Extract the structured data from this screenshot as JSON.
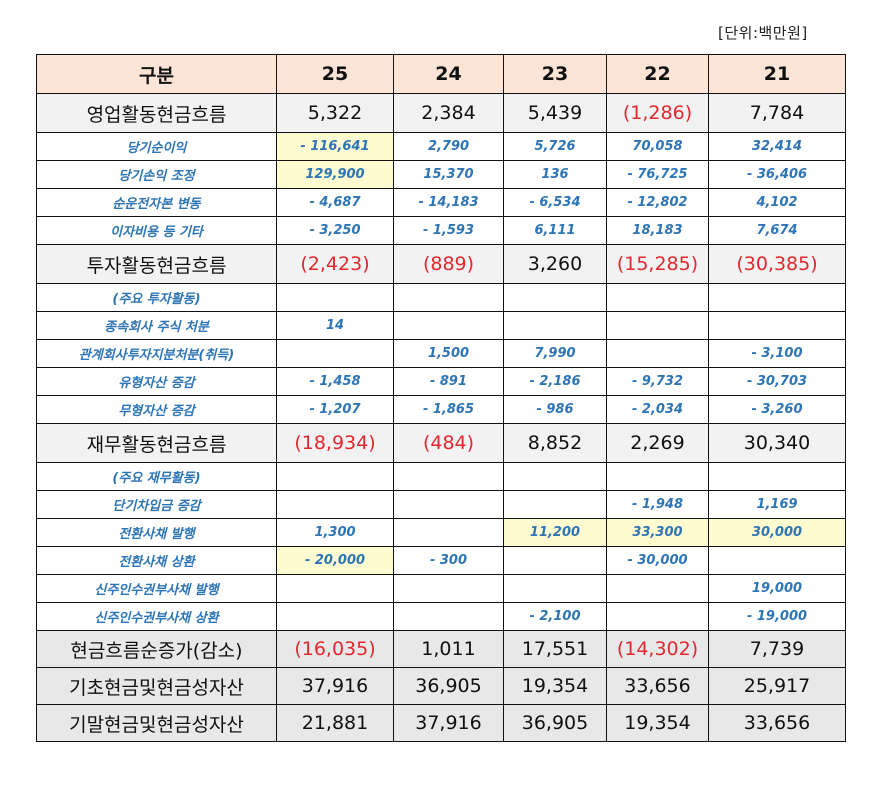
{
  "unit_label": "[단위:백만원]",
  "table": {
    "headers": [
      "구분",
      "25",
      "24",
      "23",
      "22",
      "21"
    ],
    "rows": [
      {
        "type": "main",
        "label": "영업활동현금흐름",
        "values": [
          "5,322",
          "2,384",
          "5,439",
          "(1,286)",
          "7,784"
        ],
        "neg": [
          false,
          false,
          false,
          true,
          false
        ],
        "hl": [
          false,
          false,
          false,
          false,
          false
        ]
      },
      {
        "type": "sub",
        "label": "당기순이익",
        "values": [
          "- 116,641",
          "2,790",
          "5,726",
          "70,058",
          "32,414"
        ],
        "neg": [
          false,
          false,
          false,
          false,
          false
        ],
        "hl": [
          true,
          false,
          false,
          false,
          false
        ]
      },
      {
        "type": "sub",
        "label": "당기손익 조정",
        "values": [
          "129,900",
          "15,370",
          "136",
          "-   76,725",
          "- 36,406"
        ],
        "neg": [
          false,
          false,
          false,
          false,
          false
        ],
        "hl": [
          true,
          false,
          false,
          false,
          false
        ]
      },
      {
        "type": "sub",
        "label": "순운전자본 변동",
        "values": [
          "- 4,687",
          "- 14,183",
          "- 6,534",
          "-   12,802",
          "4,102"
        ],
        "neg": [
          false,
          false,
          false,
          false,
          false
        ],
        "hl": [
          false,
          false,
          false,
          false,
          false
        ]
      },
      {
        "type": "sub",
        "label": "이자비용 등 기타",
        "values": [
          "- 3,250",
          "- 1,593",
          "6,111",
          "18,183",
          "7,674"
        ],
        "neg": [
          false,
          false,
          false,
          false,
          false
        ],
        "hl": [
          false,
          false,
          false,
          false,
          false
        ]
      },
      {
        "type": "main",
        "label": "투자활동현금흐름",
        "values": [
          "(2,423)",
          "(889)",
          "3,260",
          "(15,285)",
          "(30,385)"
        ],
        "neg": [
          true,
          true,
          false,
          true,
          true
        ],
        "hl": [
          false,
          false,
          false,
          false,
          false
        ]
      },
      {
        "type": "sub",
        "label": "(주요 투자활동)",
        "values": [
          "",
          "",
          "",
          "",
          ""
        ],
        "neg": [
          false,
          false,
          false,
          false,
          false
        ],
        "hl": [
          false,
          false,
          false,
          false,
          false
        ]
      },
      {
        "type": "sub",
        "label": "종속회사 주식 처분",
        "values": [
          "14",
          "",
          "",
          "",
          ""
        ],
        "neg": [
          false,
          false,
          false,
          false,
          false
        ],
        "hl": [
          false,
          false,
          false,
          false,
          false
        ]
      },
      {
        "type": "sub",
        "label": "관계회사투자지분처분(취득)",
        "values": [
          "",
          "1,500",
          "7,990",
          "",
          "- 3,100"
        ],
        "neg": [
          false,
          false,
          false,
          false,
          false
        ],
        "hl": [
          false,
          false,
          false,
          false,
          false
        ]
      },
      {
        "type": "sub",
        "label": "유형자산 증감",
        "values": [
          "- 1,458",
          "- 891",
          "- 2,186",
          "- 9,732",
          "- 30,703"
        ],
        "neg": [
          false,
          false,
          false,
          false,
          false
        ],
        "hl": [
          false,
          false,
          false,
          false,
          false
        ]
      },
      {
        "type": "sub",
        "label": "무형자산 증감",
        "values": [
          "- 1,207",
          "- 1,865",
          "- 986",
          "- 2,034",
          "- 3,260"
        ],
        "neg": [
          false,
          false,
          false,
          false,
          false
        ],
        "hl": [
          false,
          false,
          false,
          false,
          false
        ]
      },
      {
        "type": "main",
        "label": "재무활동현금흐름",
        "values": [
          "(18,934)",
          "(484)",
          "8,852",
          "2,269",
          "30,340"
        ],
        "neg": [
          true,
          true,
          false,
          false,
          false
        ],
        "hl": [
          false,
          false,
          false,
          false,
          false
        ]
      },
      {
        "type": "sub",
        "label": "(주요 재무활동)",
        "values": [
          "",
          "",
          "",
          "",
          ""
        ],
        "neg": [
          false,
          false,
          false,
          false,
          false
        ],
        "hl": [
          false,
          false,
          false,
          false,
          false
        ]
      },
      {
        "type": "sub",
        "label": "단기차입금 증감",
        "values": [
          "",
          "",
          "",
          "- 1,948",
          "1,169"
        ],
        "neg": [
          false,
          false,
          false,
          false,
          false
        ],
        "hl": [
          false,
          false,
          false,
          false,
          false
        ]
      },
      {
        "type": "sub",
        "label": "전환사채 발행",
        "values": [
          "1,300",
          "",
          "11,200",
          "33,300",
          "30,000"
        ],
        "neg": [
          false,
          false,
          false,
          false,
          false
        ],
        "hl": [
          false,
          false,
          true,
          true,
          true
        ]
      },
      {
        "type": "sub",
        "label": "전환사채 상환",
        "values": [
          "- 20,000",
          "- 300",
          "",
          "- 30,000",
          ""
        ],
        "neg": [
          false,
          false,
          false,
          false,
          false
        ],
        "hl": [
          true,
          false,
          false,
          false,
          false
        ]
      },
      {
        "type": "sub",
        "label": "신주인수권부사채 발행",
        "values": [
          "",
          "",
          "",
          "",
          "19,000"
        ],
        "neg": [
          false,
          false,
          false,
          false,
          false
        ],
        "hl": [
          false,
          false,
          false,
          false,
          false
        ]
      },
      {
        "type": "sub",
        "label": "신주인수권부사채 상환",
        "values": [
          "",
          "",
          "-   2,100",
          "",
          "- 19,000"
        ],
        "neg": [
          false,
          false,
          false,
          false,
          false
        ],
        "hl": [
          false,
          false,
          false,
          false,
          false
        ]
      },
      {
        "type": "total",
        "label": "현금흐름순증가(감소)",
        "values": [
          "(16,035)",
          "1,011",
          "17,551",
          "(14,302)",
          "7,739"
        ],
        "neg": [
          true,
          false,
          false,
          true,
          false
        ],
        "hl": [
          false,
          false,
          false,
          false,
          false
        ]
      },
      {
        "type": "total",
        "label": "기초현금및현금성자산",
        "values": [
          "37,916",
          "36,905",
          "19,354",
          "33,656",
          "25,917"
        ],
        "neg": [
          false,
          false,
          false,
          false,
          false
        ],
        "hl": [
          false,
          false,
          false,
          false,
          false
        ]
      },
      {
        "type": "total",
        "label": "기말현금및현금성자산",
        "values": [
          "21,881",
          "37,916",
          "36,905",
          "19,354",
          "33,656"
        ],
        "neg": [
          false,
          false,
          false,
          false,
          false
        ],
        "hl": [
          false,
          false,
          false,
          false,
          false
        ]
      }
    ]
  }
}
